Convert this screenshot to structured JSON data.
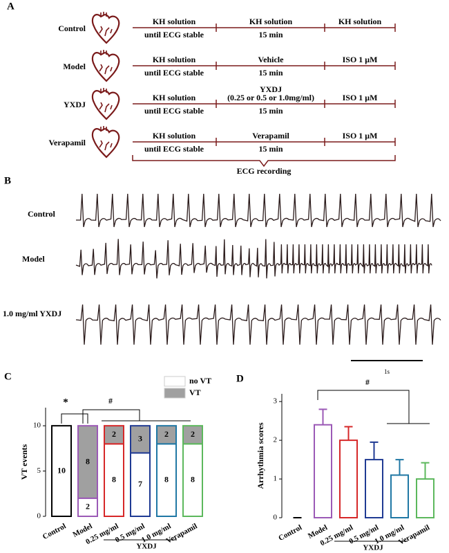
{
  "panel_a": {
    "label": "A",
    "rows": [
      {
        "label": "Control",
        "segments": [
          [
            "KH solution",
            "until ECG stable"
          ],
          [
            "KH solution",
            "15 min"
          ],
          [
            "KH solution"
          ]
        ]
      },
      {
        "label": "Model",
        "segments": [
          [
            "KH solution",
            "until ECG stable"
          ],
          [
            "Vehicle",
            "15 min"
          ],
          [
            "ISO 1 μM"
          ]
        ]
      },
      {
        "label": "YXDJ",
        "segments": [
          [
            "KH solution",
            "until ECG stable"
          ],
          [
            "YXDJ",
            "(0.25 or 0.5 or 1.0mg/ml)",
            "15 min"
          ],
          [
            "ISO 1 μM"
          ]
        ]
      },
      {
        "label": "Verapamil",
        "segments": [
          [
            "KH solution",
            "until ECG stable"
          ],
          [
            "Verapamil",
            "15 min"
          ],
          [
            "ISO 1 μM"
          ]
        ]
      }
    ],
    "bracket_label": "ECG  recording"
  },
  "panel_b": {
    "label": "B",
    "traces": [
      "Control",
      "Model",
      "1.0 mg/ml YXDJ"
    ],
    "scale_label": "1s"
  },
  "chart_data": [
    {
      "type": "stacked_bar",
      "panel_label": "C",
      "y_label": "VT events",
      "categories": [
        "Control",
        "Model",
        "0.25 mg/ml",
        "0.5 mg/ml",
        "1.0 mg/ml",
        "Verapamil"
      ],
      "colors": [
        "#000000",
        "#9b59b6",
        "#d62728",
        "#1f3a93",
        "#1f77a4",
        "#5cb85c"
      ],
      "series": [
        {
          "name": "no VT",
          "color": "#ffffff",
          "values": [
            10,
            2,
            8,
            7,
            8,
            8
          ]
        },
        {
          "name": "VT",
          "color": "#a0a0a0",
          "values": [
            0,
            8,
            2,
            3,
            2,
            2
          ]
        }
      ],
      "ylim": [
        0,
        12
      ],
      "yticks": [
        0,
        5,
        10
      ],
      "group_label": "YXDJ",
      "annotations": [
        "*",
        "#"
      ]
    },
    {
      "type": "bar",
      "panel_label": "D",
      "y_label": "Arrhythmia scores",
      "categories": [
        "Control",
        "Model",
        "0.25 mg/ml",
        "0.5 mg/ml",
        "1.0 mg/ml",
        "Verapamil"
      ],
      "colors": [
        "#000000",
        "#9b59b6",
        "#d62728",
        "#1f3a93",
        "#1f77a4",
        "#5cb85c"
      ],
      "values": [
        0,
        2.4,
        2.0,
        1.5,
        1.1,
        1.0
      ],
      "errors": [
        0,
        0.4,
        0.35,
        0.45,
        0.4,
        0.42
      ],
      "ylim": [
        0,
        3.2
      ],
      "yticks": [
        0,
        1,
        2,
        3
      ],
      "group_label": "YXDJ",
      "annotations": [
        "#"
      ]
    }
  ]
}
